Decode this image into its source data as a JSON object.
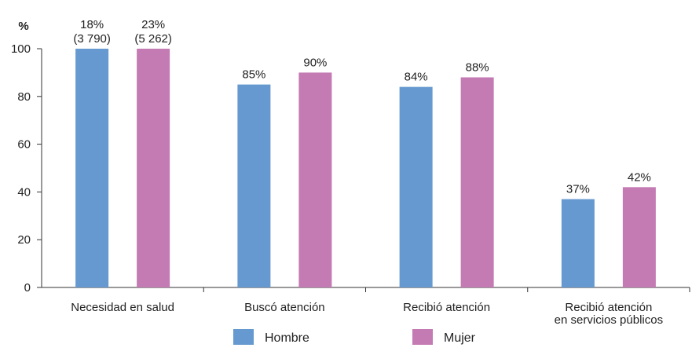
{
  "chart_data": {
    "type": "bar",
    "ylabel": "%",
    "ylim": [
      0,
      100
    ],
    "yticks": [
      0,
      20,
      40,
      60,
      80,
      100
    ],
    "grid": false,
    "legend_placement": "bottom",
    "categories": [
      [
        "Necesidad en salud"
      ],
      [
        "Buscó atención"
      ],
      [
        "Recibió atención"
      ],
      [
        "Recibió atención",
        "en servicios públicos"
      ]
    ],
    "series": [
      {
        "name": "Hombre",
        "color": "#6699d0",
        "values": [
          100,
          85,
          84,
          37
        ],
        "labels": [
          [
            "18%",
            "(3 790)"
          ],
          [
            "85%"
          ],
          [
            "84%"
          ],
          [
            "37%"
          ]
        ]
      },
      {
        "name": "Mujer",
        "color": "#c47ab3",
        "values": [
          100,
          90,
          88,
          42
        ],
        "labels": [
          [
            "23%",
            "(5 262)"
          ],
          [
            "90%"
          ],
          [
            "88%"
          ],
          [
            "42%"
          ]
        ]
      }
    ]
  }
}
